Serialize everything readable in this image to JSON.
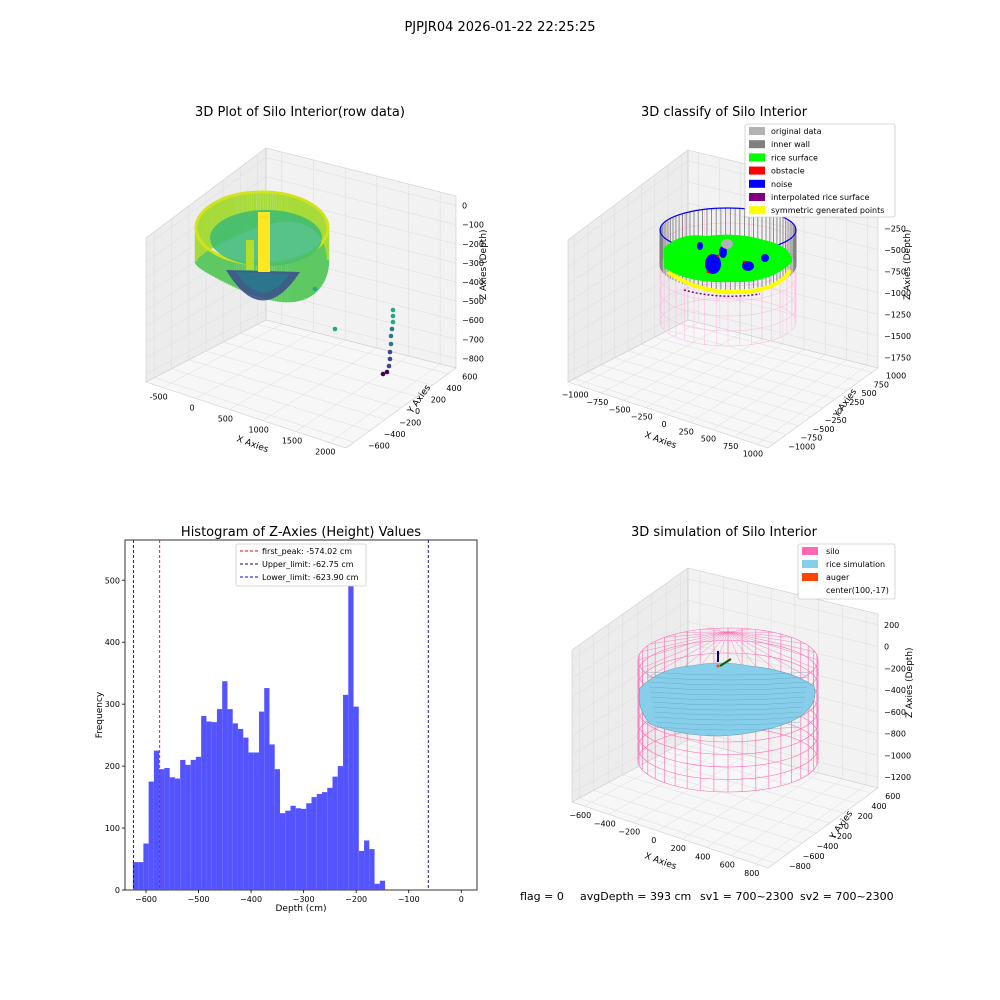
{
  "suptitle": "PJPJR04 2026-01-22 22:25:25",
  "footer": {
    "flag": "flag = 0",
    "avg_depth": "avgDepth = 393 cm",
    "sv1": "sv1 = 700~2300",
    "sv2": "sv2 = 700~2300"
  },
  "chart_data": [
    {
      "type": "scatter3d",
      "title": "3D Plot of Silo Interior(row data)",
      "xlabel": "X Axies",
      "ylabel": "Y Axies",
      "zlabel": "Z Axies (Depth)",
      "x_ticks": [
        "-500",
        "0",
        "500",
        "1000",
        "1500",
        "2000"
      ],
      "y_ticks": [
        "600",
        "400",
        "200",
        "0",
        "−200",
        "−400",
        "−600"
      ],
      "z_ticks": [
        "0",
        "−100",
        "−200",
        "−300",
        "−400",
        "−500",
        "−600",
        "−700",
        "−800"
      ],
      "colormap": "viridis"
    },
    {
      "type": "scatter3d",
      "title": "3D classify of Silo Interior",
      "xlabel": "X Axies",
      "ylabel": "Y Axies",
      "zlabel": "Z Axies (Depth)",
      "x_ticks": [
        "−1000",
        "−750",
        "−500",
        "−250",
        "0",
        "250",
        "500",
        "750",
        "1000"
      ],
      "y_ticks": [
        "1000",
        "750",
        "500",
        "250",
        "0",
        "−250",
        "−500",
        "−750",
        "−1000"
      ],
      "z_ticks": [
        "0",
        "−250",
        "−500",
        "−750",
        "−1000",
        "−1250",
        "−1500",
        "−1750"
      ],
      "legend": [
        {
          "label": "original data",
          "color": "#b3b3b3"
        },
        {
          "label": "inner wall",
          "color": "#808080"
        },
        {
          "label": "rice surface",
          "color": "#00ff00"
        },
        {
          "label": "obstacle",
          "color": "#ff0000"
        },
        {
          "label": "noise",
          "color": "#0000ff"
        },
        {
          "label": "interpolated rice surface",
          "color": "#800080"
        },
        {
          "label": "symmetric generated points",
          "color": "#ffff00"
        }
      ]
    },
    {
      "type": "bar",
      "title": "Histogram of Z-Axies (Height) Values",
      "xlabel": "Depth (cm)",
      "ylabel": "Frequency",
      "bar_color": "#4b4bff",
      "xlim": [
        -640,
        30
      ],
      "ylim": [
        0,
        565
      ],
      "x_ticks": [
        -600,
        -500,
        -400,
        -300,
        -200,
        -100,
        0
      ],
      "y_ticks": [
        0,
        100,
        200,
        300,
        400,
        500
      ],
      "bin_start": -625,
      "bin_width": 10,
      "values": [
        45,
        45,
        75,
        175,
        225,
        195,
        197,
        182,
        180,
        210,
        202,
        210,
        215,
        281,
        272,
        271,
        292,
        337,
        292,
        269,
        260,
        246,
        222,
        222,
        288,
        326,
        235,
        195,
        124,
        128,
        136,
        132,
        131,
        140,
        150,
        155,
        158,
        165,
        183,
        200,
        315,
        540,
        296,
        63,
        80,
        66,
        10,
        15,
        0
      ],
      "vlines": [
        {
          "label": "first_peak: -574.02 cm",
          "x": -574.02,
          "color": "#ff0000"
        },
        {
          "label": "Upper_limit: -62.75 cm",
          "x": -62.75,
          "color": "#00008b"
        },
        {
          "label": "Lower_limit: -623.90 cm",
          "x": -623.9,
          "color": "#0000ff"
        }
      ]
    },
    {
      "type": "surface3d",
      "title": "3D simulation of Silo Interior",
      "xlabel": "X Axies",
      "ylabel": "Y Axies",
      "zlabel": "Z Axies (Depth)",
      "x_ticks": [
        "−600",
        "−400",
        "−200",
        "0",
        "200",
        "400",
        "600",
        "800"
      ],
      "y_ticks": [
        "600",
        "400",
        "200",
        "0",
        "−200",
        "−400",
        "−600",
        "−800"
      ],
      "z_ticks": [
        "200",
        "0",
        "−200",
        "−400",
        "−600",
        "−800",
        "−1000",
        "−1200"
      ],
      "legend": [
        {
          "label": "silo",
          "color": "#ff69b4"
        },
        {
          "label": "rice simulation",
          "color": "#87ceeb"
        },
        {
          "label": "auger",
          "color": "#ff4500"
        },
        {
          "label": "center(100,-17)",
          "color": ""
        }
      ]
    }
  ]
}
